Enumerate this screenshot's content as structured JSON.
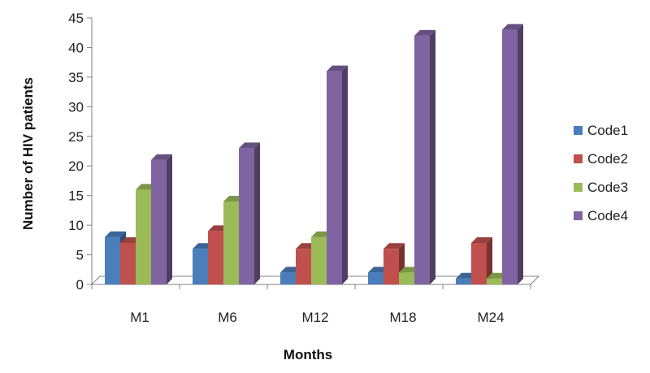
{
  "chart_data": {
    "type": "bar",
    "style": "3d-clustered-column",
    "title": "",
    "xlabel": "Months",
    "ylabel": "Number of HIV patients",
    "categories": [
      "M1",
      "M6",
      "M12",
      "M18",
      "M24"
    ],
    "ylim": [
      0,
      45
    ],
    "ytick_step": 5,
    "grid": false,
    "legend_position": "right",
    "series": [
      {
        "name": "Code1",
        "color": "#4a7ebb",
        "values": [
          8,
          6,
          2,
          2,
          1
        ]
      },
      {
        "name": "Code2",
        "color": "#c0504d",
        "values": [
          7,
          9,
          6,
          6,
          7
        ]
      },
      {
        "name": "Code3",
        "color": "#9bbb59",
        "values": [
          16,
          14,
          8,
          2,
          1
        ]
      },
      {
        "name": "Code4",
        "color": "#8064a2",
        "values": [
          21,
          23,
          36,
          42,
          43
        ]
      }
    ]
  }
}
